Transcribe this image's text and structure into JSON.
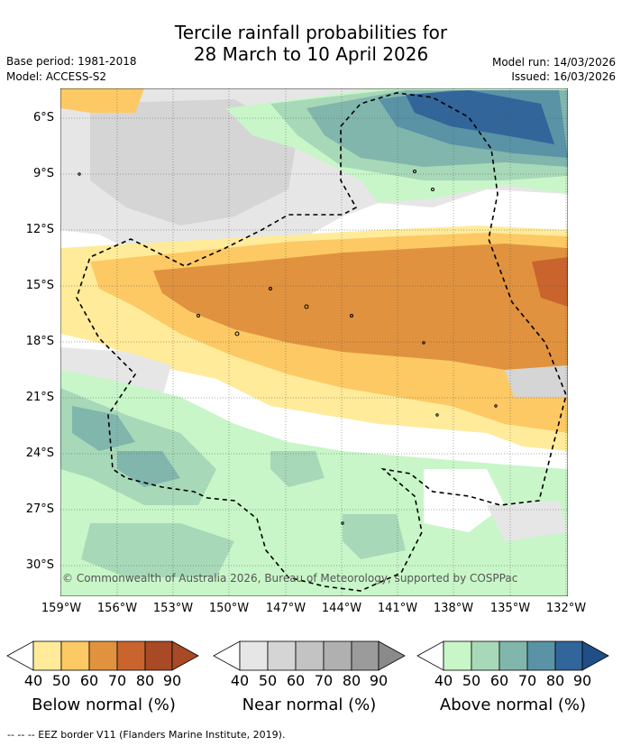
{
  "title_line1": "Tercile rainfall probabilities for",
  "title_line2": "28 March to 10 April 2026",
  "base_period": "Base period: 1981-2018",
  "model": "Model: ACCESS-S2",
  "model_run": "Model run: 14/03/2026",
  "issued": "Issued: 16/03/2026",
  "credit": "© Commonwealth of Australia 2026, Bureau of Meteorology, supported by COSPPac",
  "footer": "-- -- -- EEZ border V11 (Flanders Marine Institute, 2019).",
  "lat_labels": [
    "6°S",
    "9°S",
    "12°S",
    "15°S",
    "18°S",
    "21°S",
    "24°S",
    "27°S",
    "30°S"
  ],
  "lon_labels": [
    "159°W",
    "156°W",
    "153°W",
    "150°W",
    "147°W",
    "144°W",
    "141°W",
    "138°W",
    "135°W",
    "132°W"
  ],
  "colorbars": [
    {
      "title": "Below normal (%)",
      "ticks": [
        "40",
        "50",
        "60",
        "70",
        "80",
        "90"
      ],
      "colors": [
        "#ffffff",
        "#ffeb9a",
        "#fdc964",
        "#e0923e",
        "#c9642e",
        "#a84a25",
        "#a84a25"
      ]
    },
    {
      "title": "Near normal (%)",
      "ticks": [
        "40",
        "50",
        "60",
        "70",
        "80",
        "90"
      ],
      "colors": [
        "#ffffff",
        "#e6e6e6",
        "#d5d5d5",
        "#c3c3c3",
        "#b0b0b0",
        "#9b9b9b",
        "#8a8a8a"
      ]
    },
    {
      "title": "Above normal (%)",
      "ticks": [
        "40",
        "50",
        "60",
        "70",
        "80",
        "90"
      ],
      "colors": [
        "#ffffff",
        "#c8f6c8",
        "#a7d9b8",
        "#81b6ad",
        "#5a92a6",
        "#32659a",
        "#1f4f86"
      ]
    }
  ],
  "map_colors": {
    "below40": "#ffeb9a",
    "below50": "#fdc964",
    "below60": "#e0923e",
    "below70": "#c9642e",
    "near40": "#e6e6e6",
    "near50": "#d5d5d5",
    "near60": "#c3c3c3",
    "above40": "#c8f6c8",
    "above50": "#a7d9b8",
    "above60": "#81b6ad",
    "above70": "#5a92a6",
    "above80": "#32659a"
  }
}
